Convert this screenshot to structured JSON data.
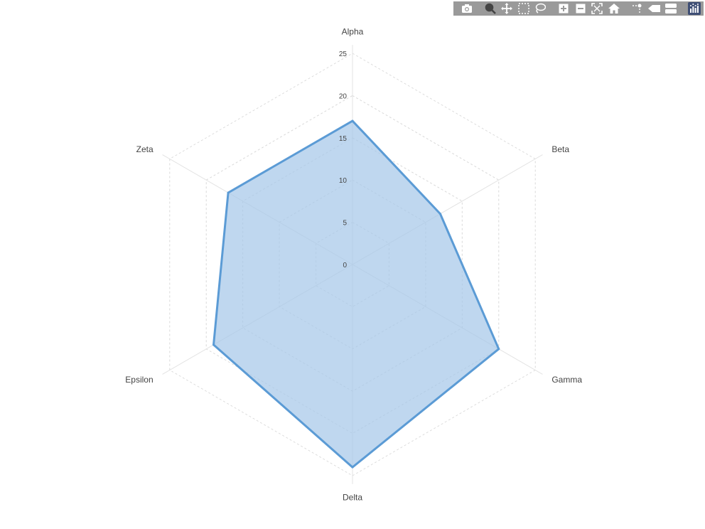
{
  "toolbar": {
    "buttons": [
      {
        "name": "camera-icon",
        "active": false
      },
      {
        "name": "zoom-icon",
        "active": true
      },
      {
        "name": "pan-icon",
        "active": false
      },
      {
        "name": "box-select-icon",
        "active": false
      },
      {
        "name": "lasso-select-icon",
        "active": false
      },
      {
        "name": "zoom-in-icon",
        "active": false
      },
      {
        "name": "zoom-out-icon",
        "active": false
      },
      {
        "name": "autoscale-icon",
        "active": false
      },
      {
        "name": "reset-axes-icon",
        "active": false
      },
      {
        "name": "spike-lines-icon",
        "active": false
      },
      {
        "name": "hover-closest-icon",
        "active": false
      },
      {
        "name": "hover-compare-icon",
        "active": false
      },
      {
        "name": "plotly-logo-icon",
        "active": false
      }
    ],
    "bar_color": "#9a9a9a",
    "icon_color": "#ffffff",
    "active_icon_color": "#444444"
  },
  "chart_data": {
    "type": "radar",
    "categories": [
      "Alpha",
      "Beta",
      "Gamma",
      "Delta",
      "Epsilon",
      "Zeta"
    ],
    "series": [
      {
        "values": [
          17,
          12,
          20,
          24,
          19,
          17
        ],
        "fill_color": "#a6c8e9",
        "line_color": "#5b9bd5"
      }
    ],
    "radial_range": [
      0,
      25
    ],
    "radial_ticks": [
      "0",
      "5",
      "10",
      "15",
      "20",
      "25"
    ],
    "gridlines": "dashed",
    "title": "",
    "legend": "none"
  }
}
